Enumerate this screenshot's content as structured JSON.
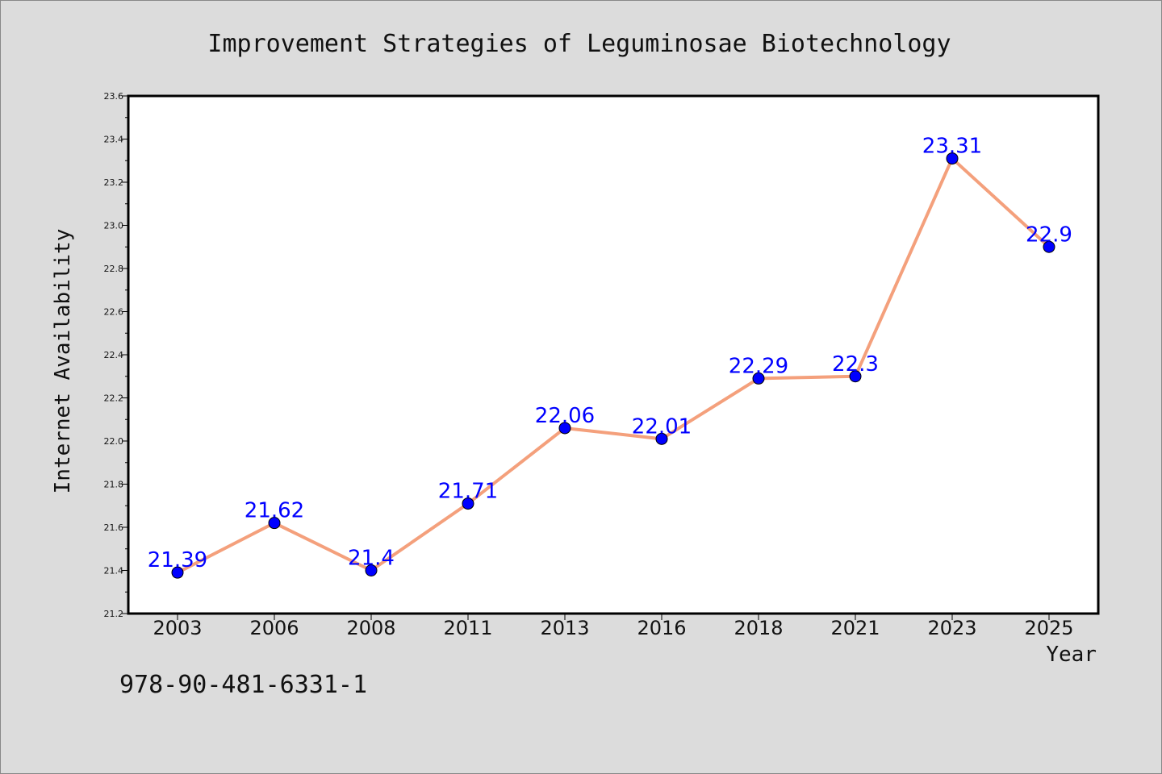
{
  "chart_data": {
    "type": "line",
    "title": "Improvement Strategies of Leguminosae Biotechnology",
    "xlabel": "Year",
    "ylabel": "Internet Availability",
    "categories": [
      "2003",
      "2006",
      "2008",
      "2011",
      "2013",
      "2016",
      "2018",
      "2021",
      "2023",
      "2025"
    ],
    "values": [
      21.39,
      21.62,
      21.4,
      21.71,
      22.06,
      22.01,
      22.29,
      22.3,
      23.31,
      22.9
    ],
    "data_labels": [
      "21.39",
      "21.62",
      "21.4",
      "21.71",
      "22.06",
      "22.01",
      "22.29",
      "22.3",
      "23.31",
      "22.9"
    ],
    "ylim": [
      21.2,
      23.6
    ],
    "yticks": [
      "21.2",
      "21.4",
      "21.6",
      "21.8",
      "22.0",
      "22.2",
      "22.4",
      "22.6",
      "22.8",
      "23.0",
      "23.2",
      "23.4",
      "23.6"
    ],
    "grid": false,
    "colors": {
      "line": "#f4a07c",
      "marker": "#0000ff",
      "label": "#0000ff",
      "background": "#dcdcdc",
      "plot_background": "#ffffff"
    }
  },
  "footer": {
    "isbn": "978-90-481-6331-1"
  }
}
